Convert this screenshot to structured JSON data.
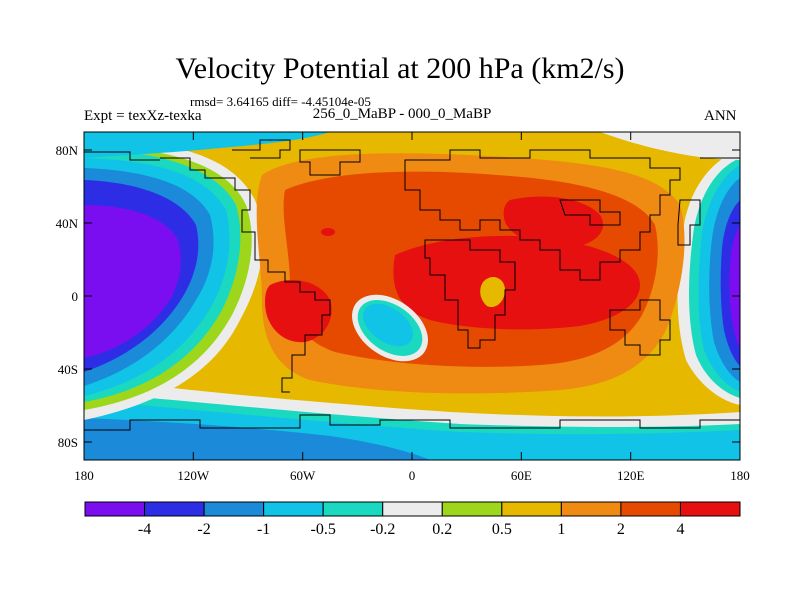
{
  "title": "Velocity Potential at 200 hPa (km2/s)",
  "stats_line": "rmsd= 3.64165 diff= -4.45104e-05",
  "expt_label": "Expt = texXz-texka",
  "case_label": "256_0_MaBP - 000_0_MaBP",
  "season_label": "ANN",
  "map": {
    "lon_ticks": [
      "180",
      "120W",
      "60W",
      "0",
      "60E",
      "120E",
      "180"
    ],
    "lat_ticks": [
      "80N",
      "40N",
      "0",
      "40S",
      "80S"
    ],
    "fill_levels": {
      "lt_-4": "#7a0ef0",
      "-4_to_-2": "#2d2de6",
      "-2_to_-1": "#1a8ad9",
      "-1_to_-0.5": "#11c3e6",
      "-0.5_to_-0.2": "#1ad9c0",
      "-0.2_to_0.2": "#ececec",
      "0.2_to_0.5": "#9ed61c",
      "0.5_to_1": "#e6b800",
      "1_to_2": "#ef8a12",
      "2_to_4": "#e64a00",
      "gt_4": "#e61010"
    }
  },
  "colorbar": {
    "colors": [
      "#7a0ef0",
      "#2d2de6",
      "#1a8ad9",
      "#11c3e6",
      "#1ad9c0",
      "#ececec",
      "#9ed61c",
      "#e6b800",
      "#ef8a12",
      "#e64a00",
      "#e61010"
    ],
    "labels": [
      "-4",
      "-2",
      "-1",
      "-0.5",
      "-0.2",
      "0.2",
      "0.5",
      "1",
      "2",
      "4"
    ]
  }
}
